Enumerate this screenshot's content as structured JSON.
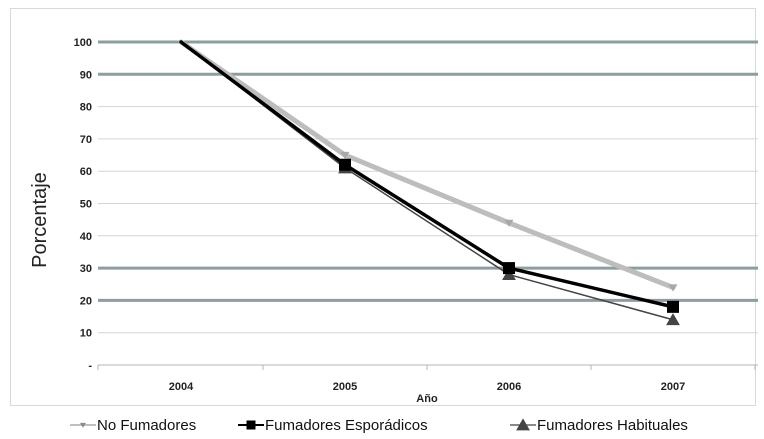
{
  "chart_data": {
    "type": "line",
    "title": "",
    "xlabel": "Año",
    "ylabel": "Porcentaje",
    "categories": [
      "2004",
      "2005",
      "2006",
      "2007"
    ],
    "ylim": [
      0,
      100
    ],
    "y_ticks": [
      "-",
      "10",
      "20",
      "30",
      "40",
      "50",
      "60",
      "70",
      "80",
      "90",
      "100"
    ],
    "grid": true,
    "legend_position": "bottom",
    "series": [
      {
        "name": "No Fumadores",
        "values": [
          100,
          65,
          44,
          24
        ],
        "color": "#bdbdbd",
        "marker": "triangle-down"
      },
      {
        "name": "Fumadores Esporádicos",
        "values": [
          100,
          62,
          30,
          18
        ],
        "color": "#000000",
        "marker": "square"
      },
      {
        "name": "Fumadores Habituales",
        "values": [
          100,
          61,
          28,
          14
        ],
        "color": "#444444",
        "marker": "triangle-up"
      }
    ]
  }
}
